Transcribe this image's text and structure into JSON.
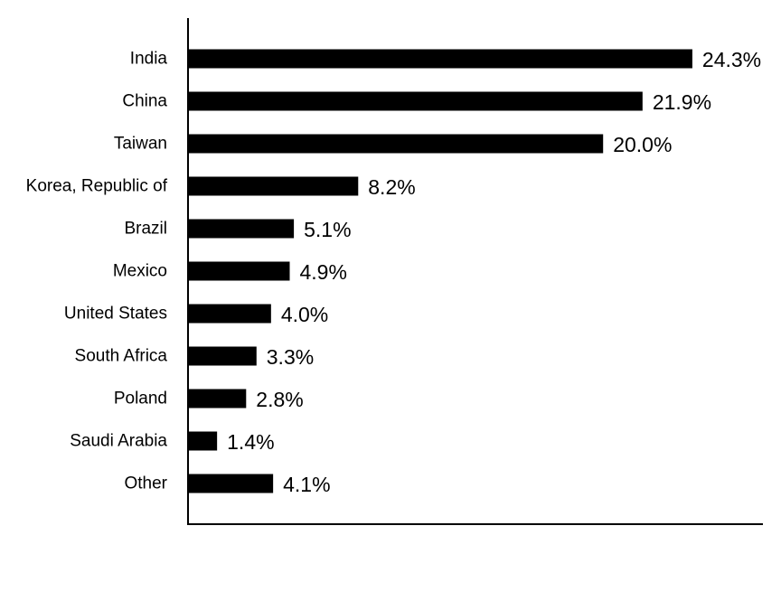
{
  "chart_data": {
    "type": "bar",
    "orientation": "horizontal",
    "categories": [
      "India",
      "China",
      "Taiwan",
      "Korea, Republic of",
      "Brazil",
      "Mexico",
      "United States",
      "South Africa",
      "Poland",
      "Saudi Arabia",
      "Other"
    ],
    "values": [
      24.3,
      21.9,
      20.0,
      8.2,
      5.1,
      4.9,
      4.0,
      3.3,
      2.8,
      1.4,
      4.1
    ],
    "value_labels": [
      "24.3%",
      "21.9%",
      "20.0%",
      "8.2%",
      "5.1%",
      "4.9%",
      "4.0%",
      "3.3%",
      "2.8%",
      "1.4%",
      "4.1%"
    ],
    "title": "",
    "xlabel": "",
    "ylabel": "",
    "xlim": [
      0,
      27.7
    ],
    "grid": false,
    "legend": "none",
    "bar_color": "#000000",
    "data_labels": true
  }
}
